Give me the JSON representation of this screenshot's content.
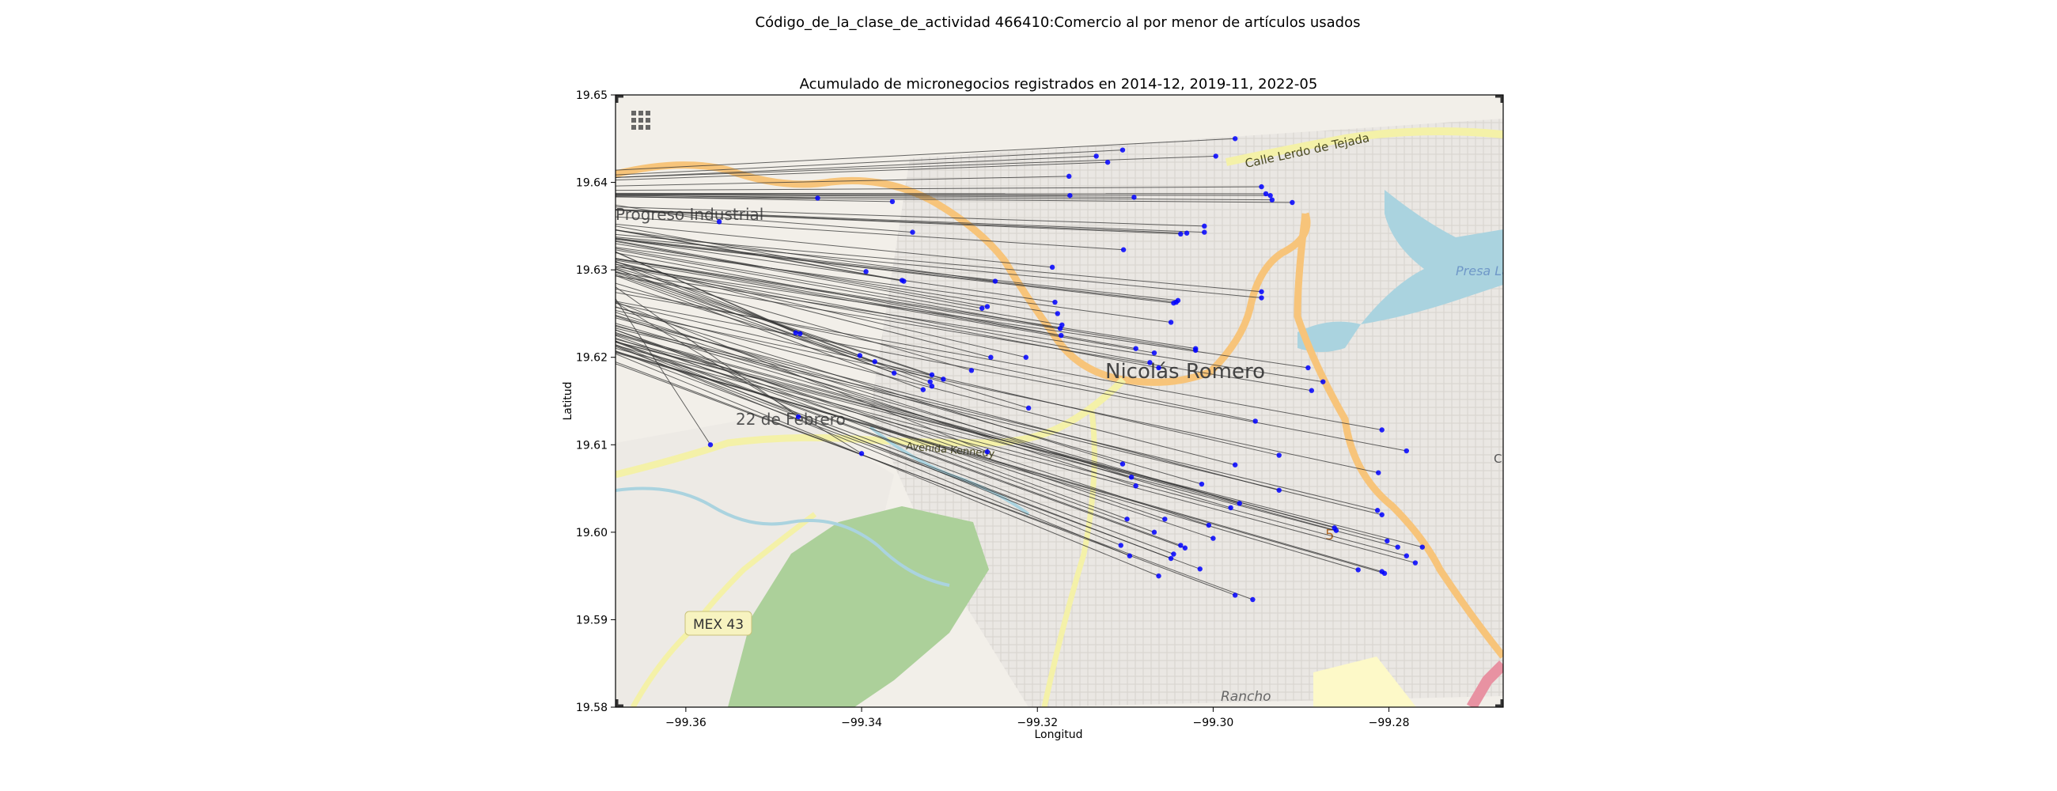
{
  "figure": {
    "suptitle": "Código_de_la_clase_de_actividad 466410:Comercio al por menor de artículos usados"
  },
  "chart_data": {
    "type": "scatter",
    "title": "Acumulado de micronegocios registrados en 2014-12, 2019-11, 2022-05",
    "xlabel": "Longitud",
    "ylabel": "Latitud",
    "xlim": [
      -99.368,
      -99.267
    ],
    "ylim": [
      19.58,
      19.65
    ],
    "xticks": [
      -99.36,
      -99.34,
      -99.32,
      -99.3,
      -99.28
    ],
    "xtick_labels": [
      "−99.36",
      "−99.34",
      "−99.32",
      "−99.30",
      "−99.28"
    ],
    "yticks": [
      19.58,
      19.59,
      19.6,
      19.61,
      19.62,
      19.63,
      19.64,
      19.65
    ],
    "ytick_labels": [
      "19.58",
      "19.59",
      "19.60",
      "19.61",
      "19.62",
      "19.63",
      "19.64",
      "19.65"
    ],
    "point_color": "#0000ff",
    "line_color": "#333333",
    "grid": false,
    "basemap_labels": [
      {
        "text": "Calle Lerdo de Tejada",
        "kind": "road"
      },
      {
        "text": "Progreso Industrial",
        "kind": "place"
      },
      {
        "text": "Nicolás Romero",
        "kind": "city"
      },
      {
        "text": "22 de Febrero",
        "kind": "place"
      },
      {
        "text": "Avenida Kennedy",
        "kind": "road"
      },
      {
        "text": "MEX 43",
        "kind": "shield"
      },
      {
        "text": "Rancho",
        "kind": "place"
      },
      {
        "text": "Presa Lago de Guadalupe",
        "kind": "water"
      },
      {
        "text": "5",
        "kind": "shield"
      },
      {
        "text": "C",
        "kind": "place"
      }
    ],
    "points": [
      {
        "x": -99.2975,
        "y": 19.645
      },
      {
        "x": -99.2997,
        "y": 19.643
      },
      {
        "x": -99.3103,
        "y": 19.6437
      },
      {
        "x": -99.3133,
        "y": 19.643
      },
      {
        "x": -99.312,
        "y": 19.6423
      },
      {
        "x": -99.3164,
        "y": 19.6407
      },
      {
        "x": -99.3163,
        "y": 19.6385
      },
      {
        "x": -99.2945,
        "y": 19.6395
      },
      {
        "x": -99.294,
        "y": 19.6387
      },
      {
        "x": -99.2935,
        "y": 19.6385
      },
      {
        "x": -99.2933,
        "y": 19.638
      },
      {
        "x": -99.291,
        "y": 19.6377
      },
      {
        "x": -99.309,
        "y": 19.6383
      },
      {
        "x": -99.345,
        "y": 19.6382
      },
      {
        "x": -99.3365,
        "y": 19.6378
      },
      {
        "x": -99.3562,
        "y": 19.6355
      },
      {
        "x": -99.301,
        "y": 19.635
      },
      {
        "x": -99.301,
        "y": 19.6343
      },
      {
        "x": -99.303,
        "y": 19.6342
      },
      {
        "x": -99.3037,
        "y": 19.6341
      },
      {
        "x": -99.3342,
        "y": 19.6343
      },
      {
        "x": -99.3102,
        "y": 19.6323
      },
      {
        "x": -99.3183,
        "y": 19.6303
      },
      {
        "x": -99.3395,
        "y": 19.6298
      },
      {
        "x": -99.3354,
        "y": 19.6288
      },
      {
        "x": -99.3352,
        "y": 19.6287
      },
      {
        "x": -99.3248,
        "y": 19.6287
      },
      {
        "x": -99.2945,
        "y": 19.6275
      },
      {
        "x": -99.2945,
        "y": 19.6268
      },
      {
        "x": -99.304,
        "y": 19.6265
      },
      {
        "x": -99.3042,
        "y": 19.6263
      },
      {
        "x": -99.3045,
        "y": 19.6262
      },
      {
        "x": -99.318,
        "y": 19.6263
      },
      {
        "x": -99.3257,
        "y": 19.6258
      },
      {
        "x": -99.3263,
        "y": 19.6256
      },
      {
        "x": -99.3177,
        "y": 19.625
      },
      {
        "x": -99.3048,
        "y": 19.624
      },
      {
        "x": -99.3172,
        "y": 19.6237
      },
      {
        "x": -99.3174,
        "y": 19.6233
      },
      {
        "x": -99.3475,
        "y": 19.6228
      },
      {
        "x": -99.347,
        "y": 19.6227
      },
      {
        "x": -99.3173,
        "y": 19.6225
      },
      {
        "x": -99.302,
        "y": 19.621
      },
      {
        "x": -99.302,
        "y": 19.6208
      },
      {
        "x": -99.3402,
        "y": 19.6202
      },
      {
        "x": -99.3253,
        "y": 19.62
      },
      {
        "x": -99.3213,
        "y": 19.62
      },
      {
        "x": -99.3067,
        "y": 19.6205
      },
      {
        "x": -99.3088,
        "y": 19.621
      },
      {
        "x": -99.3385,
        "y": 19.6195
      },
      {
        "x": -99.3072,
        "y": 19.6194
      },
      {
        "x": -99.3062,
        "y": 19.6188
      },
      {
        "x": -99.2892,
        "y": 19.6188
      },
      {
        "x": -99.3275,
        "y": 19.6185
      },
      {
        "x": -99.3363,
        "y": 19.6182
      },
      {
        "x": -99.332,
        "y": 19.618
      },
      {
        "x": -99.3307,
        "y": 19.6175
      },
      {
        "x": -99.3322,
        "y": 19.6172
      },
      {
        "x": -99.332,
        "y": 19.6167
      },
      {
        "x": -99.2875,
        "y": 19.6172
      },
      {
        "x": -99.2888,
        "y": 19.6162
      },
      {
        "x": -99.333,
        "y": 19.6163
      },
      {
        "x": -99.321,
        "y": 19.6142
      },
      {
        "x": -99.2952,
        "y": 19.6127
      },
      {
        "x": -99.3472,
        "y": 19.6132
      },
      {
        "x": -99.2808,
        "y": 19.6117
      },
      {
        "x": -99.3572,
        "y": 19.61
      },
      {
        "x": -99.278,
        "y": 19.6093
      },
      {
        "x": -99.34,
        "y": 19.609
      },
      {
        "x": -99.3257,
        "y": 19.6092
      },
      {
        "x": -99.2925,
        "y": 19.6088
      },
      {
        "x": -99.2975,
        "y": 19.6077
      },
      {
        "x": -99.3103,
        "y": 19.6078
      },
      {
        "x": -99.2812,
        "y": 19.6068
      },
      {
        "x": -99.3093,
        "y": 19.6063
      },
      {
        "x": -99.3013,
        "y": 19.6055
      },
      {
        "x": -99.3088,
        "y": 19.6053
      },
      {
        "x": -99.2925,
        "y": 19.6048
      },
      {
        "x": -99.297,
        "y": 19.6033
      },
      {
        "x": -99.298,
        "y": 19.6028
      },
      {
        "x": -99.2813,
        "y": 19.6025
      },
      {
        "x": -99.2808,
        "y": 19.602
      },
      {
        "x": -99.3055,
        "y": 19.6015
      },
      {
        "x": -99.3005,
        "y": 19.6008
      },
      {
        "x": -99.3098,
        "y": 19.6015
      },
      {
        "x": -99.2862,
        "y": 19.6005
      },
      {
        "x": -99.286,
        "y": 19.6002
      },
      {
        "x": -99.3067,
        "y": 19.6
      },
      {
        "x": -99.3,
        "y": 19.5993
      },
      {
        "x": -99.2802,
        "y": 19.599
      },
      {
        "x": -99.279,
        "y": 19.5983
      },
      {
        "x": -99.2762,
        "y": 19.5983
      },
      {
        "x": -99.3037,
        "y": 19.5985
      },
      {
        "x": -99.3032,
        "y": 19.5982
      },
      {
        "x": -99.3105,
        "y": 19.5985
      },
      {
        "x": -99.3045,
        "y": 19.5975
      },
      {
        "x": -99.278,
        "y": 19.5973
      },
      {
        "x": -99.277,
        "y": 19.5965
      },
      {
        "x": -99.3095,
        "y": 19.5973
      },
      {
        "x": -99.3048,
        "y": 19.597
      },
      {
        "x": -99.2835,
        "y": 19.5957
      },
      {
        "x": -99.2805,
        "y": 19.5953
      },
      {
        "x": -99.2808,
        "y": 19.5955
      },
      {
        "x": -99.3015,
        "y": 19.5958
      },
      {
        "x": -99.3062,
        "y": 19.595
      },
      {
        "x": -99.2975,
        "y": 19.5928
      },
      {
        "x": -99.2955,
        "y": 19.5923
      }
    ]
  }
}
